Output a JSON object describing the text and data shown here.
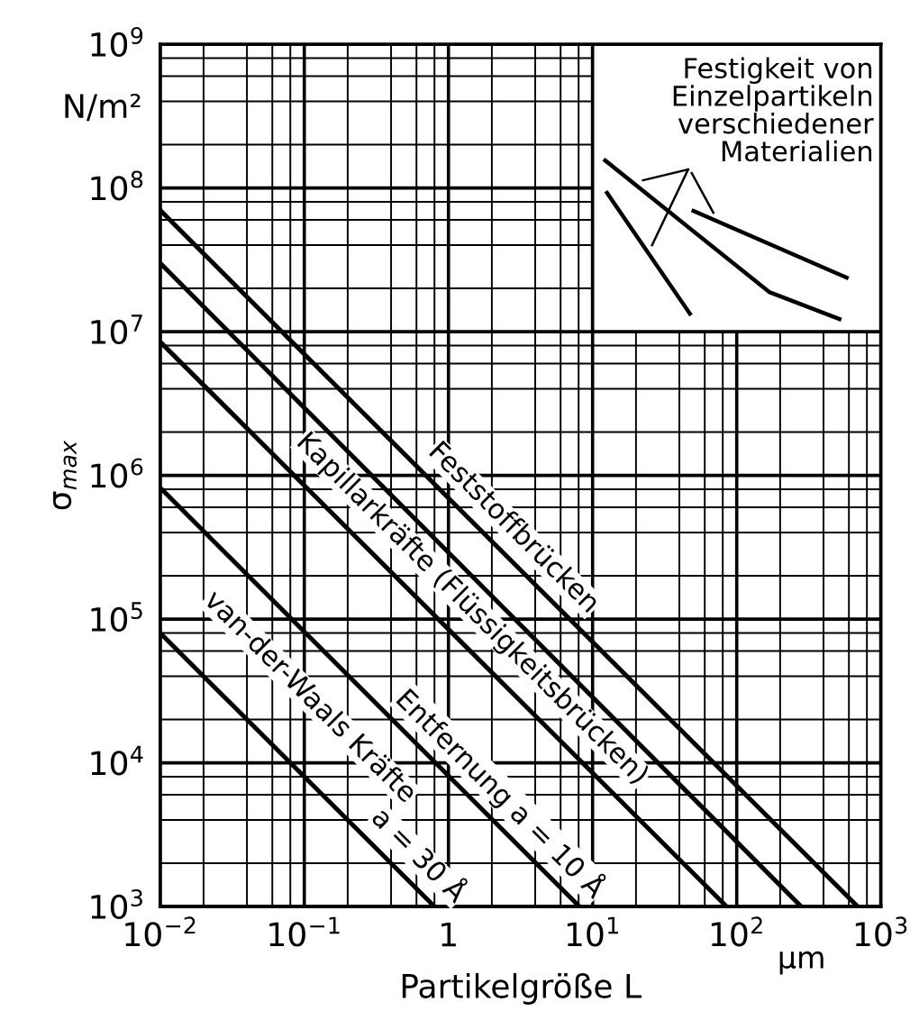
{
  "chart_data": {
    "type": "line",
    "xlabel": "Partikelgröße L",
    "ylabel": "σ$_{max}$",
    "log": "xy",
    "grid": true,
    "xlim": [
      0.01,
      1000
    ],
    "ylim": [
      1000,
      1000000000
    ],
    "xticks": [
      {
        "value": 0.01,
        "label": "10$^{−2}$"
      },
      {
        "value": 0.1,
        "label": "10$^{−1}$"
      },
      1,
      {
        "value": 10,
        "label": "10$^{1}$"
      },
      {
        "value": 100,
        "label": "10$^{2}$"
      },
      {
        "value": 1000,
        "label": "10$^{3}$"
      }
    ],
    "yticks": [
      {
        "value": 1000,
        "label": "10$^{3}$"
      },
      {
        "value": 10000,
        "label": "10$^{4}$"
      },
      {
        "value": 100000,
        "label": "10$^{5}$"
      },
      {
        "value": 1000000,
        "label": "10$^{6}$"
      },
      {
        "value": 10000000,
        "label": "10$^{7}$"
      },
      {
        "value": 100000000,
        "label": "10$^{8}$"
      },
      {
        "value": 1000000000,
        "label": "10$^{9}$"
      }
    ],
    "series": [
      {
        "color": "#000000",
        "x": [
          0.01,
          690
        ],
        "values": [
          70000000,
          1000
        ]
      },
      {
        "color": "#000000",
        "x": [
          0.01,
          280
        ],
        "values": [
          30000000,
          1000
        ]
      },
      {
        "color": "#000000",
        "x": [
          0.01,
          85
        ],
        "values": [
          8500000,
          1000
        ]
      },
      {
        "color": "#000000",
        "x": [
          0.01,
          8.1
        ],
        "values": [
          820000,
          1000
        ]
      },
      {
        "color": "#000000",
        "x": [
          0.01,
          0.8
        ],
        "values": [
          80000,
          1000
        ]
      }
    ],
    "annotations": [
      "Feststoffbrücken",
      "Kapillarkräfte (Flüssigkeitsbrücken)",
      "Entfernung a = 10 Å",
      "van-der-Waals Kräfte",
      "a = 30 Å",
      "Festigkeit von\nEinzelpartikeln\nverschiedener\nMaterialien",
      "N/m²",
      "μm"
    ]
  }
}
